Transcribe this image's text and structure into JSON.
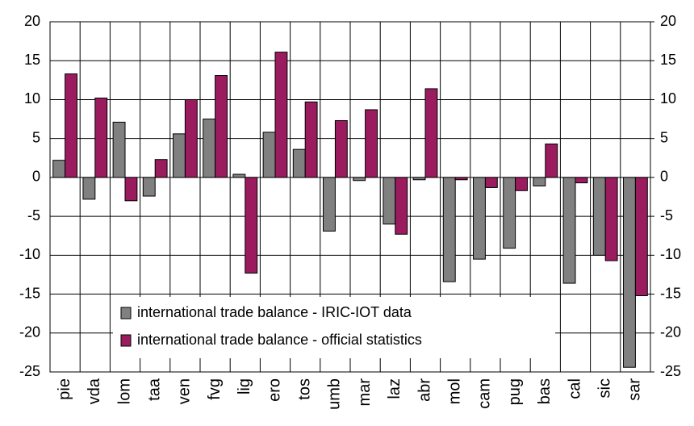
{
  "chart_data": {
    "type": "bar",
    "categories": [
      "pie",
      "vda",
      "lom",
      "taa",
      "ven",
      "fvg",
      "lig",
      "ero",
      "tos",
      "umb",
      "mar",
      "laz",
      "abr",
      "mol",
      "cam",
      "pug",
      "bas",
      "cal",
      "sic",
      "sar"
    ],
    "series": [
      {
        "name": "international trade balance - IRIC-IOT data",
        "color": "#808080",
        "values": [
          2.2,
          -2.8,
          7.1,
          -2.4,
          5.6,
          7.5,
          0.4,
          5.8,
          3.6,
          -6.9,
          -0.4,
          -6.0,
          -0.3,
          -13.4,
          -10.5,
          -9.1,
          -1.1,
          -13.6,
          -10.0,
          -24.4
        ]
      },
      {
        "name": "international trade balance - official statistics",
        "color": "#9b1b5f",
        "values": [
          13.3,
          10.2,
          -3.0,
          2.3,
          10.0,
          13.1,
          -12.3,
          16.1,
          9.7,
          7.3,
          8.7,
          -7.3,
          11.4,
          -0.3,
          -1.3,
          -1.7,
          4.3,
          -0.7,
          -10.7,
          -15.2
        ]
      }
    ],
    "ylim": [
      -25,
      20
    ],
    "yticks": [
      -25,
      -20,
      -15,
      -10,
      -5,
      0,
      5,
      10,
      15,
      20
    ],
    "y2lim": [
      -25,
      20
    ],
    "y2ticks": [
      -25,
      -20,
      -15,
      -10,
      -5,
      0,
      5,
      10,
      15,
      20
    ],
    "grid": true,
    "legend": "bottom-left"
  }
}
